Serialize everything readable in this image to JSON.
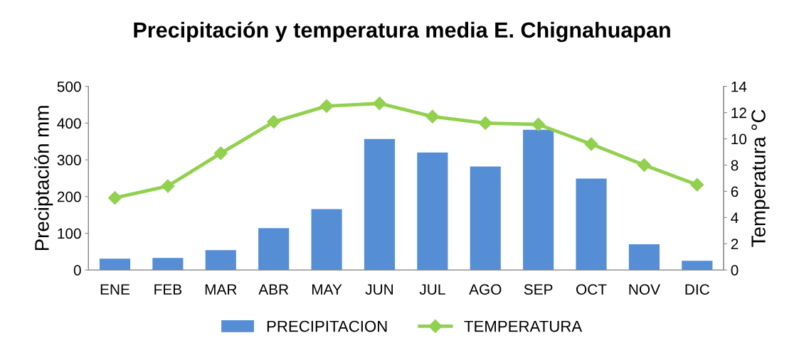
{
  "chart_data": {
    "type": "bar",
    "title": "Precipitación y temperatura media E. Chignahuapan",
    "categories": [
      "ENE",
      "FEB",
      "MAR",
      "ABR",
      "MAY",
      "JUN",
      "JUL",
      "AGO",
      "SEP",
      "OCT",
      "NOV",
      "DIC"
    ],
    "series": [
      {
        "name": "PRECIPITACION",
        "color": "#558ed5",
        "values": [
          31,
          33,
          54,
          114,
          166,
          357,
          320,
          282,
          382,
          249,
          70,
          25
        ]
      },
      {
        "name": "TEMPERATURA",
        "type": "line",
        "axis": "y2",
        "color": "#92d050",
        "marker": "diamond",
        "values": [
          5.5,
          6.4,
          8.9,
          11.3,
          12.5,
          12.7,
          11.7,
          11.2,
          11.1,
          9.6,
          8.0,
          6.5
        ]
      }
    ],
    "ylabel": "Preciptación mm",
    "y2label": "Temperatura °C",
    "ylim": [
      0,
      500
    ],
    "yticks": [
      0,
      100,
      200,
      300,
      400,
      500
    ],
    "y2lim": [
      0,
      14
    ],
    "y2ticks": [
      0,
      2,
      4,
      6,
      8,
      10,
      12,
      14
    ],
    "legend": "bottom",
    "grid": false
  }
}
